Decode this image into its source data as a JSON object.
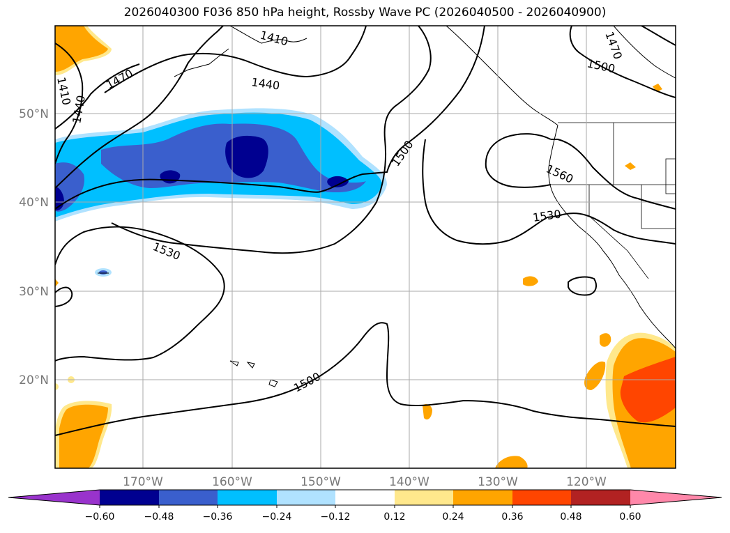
{
  "title": "2026040300 F036 850 hPa height, Rossby Wave PC (2026040500 - 2026040900)",
  "lat_labels": [
    "50°N",
    "40°N",
    "30°N",
    "20°N"
  ],
  "lon_labels": [
    "170°W",
    "160°W",
    "150°W",
    "140°W",
    "130°W",
    "120°W"
  ],
  "contour_labels": [
    "1410",
    "1440",
    "1470",
    "1440",
    "1410",
    "1470",
    "1500",
    "1500",
    "1560",
    "1530",
    "1530",
    "1500"
  ],
  "colorbar": {
    "ticks": [
      "−0.60",
      "−0.48",
      "−0.36",
      "−0.24",
      "−0.12",
      "0.12",
      "0.24",
      "0.36",
      "0.48",
      "0.60"
    ],
    "colors": {
      "under": "#9933cc",
      "c1": "#000090",
      "c2": "#3a5fcd",
      "c3": "#00bfff",
      "c4": "#b0e2ff",
      "c5": "#ffffff",
      "c6": "#ffe88c",
      "c7": "#ffa500",
      "c8": "#ff4500",
      "c9": "#b22222",
      "over": "#ff88aa"
    }
  }
}
